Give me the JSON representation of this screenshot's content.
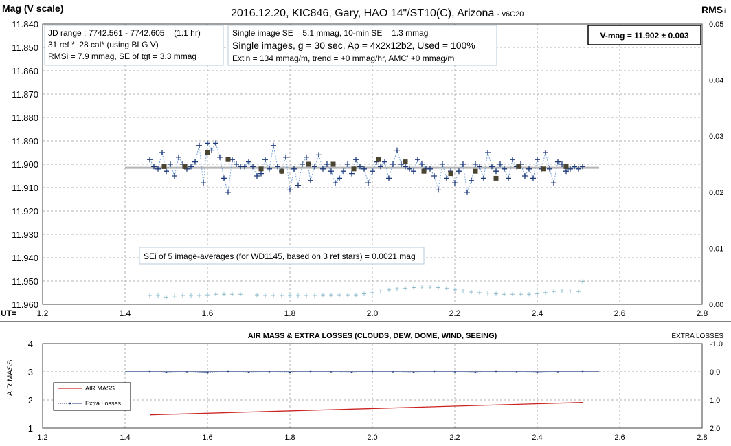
{
  "chart_data": [
    {
      "type": "scatter",
      "title": "2016.12.20, KIC846, Gary, HAO  14\"/ST10(C), Arizona",
      "version": "- v6C20",
      "ylabel": "Mag (V scale)",
      "y2label": "RMS",
      "y2label_suffix": "i",
      "xlabel": "UT=",
      "xlim": [
        1.2,
        2.8
      ],
      "ylim": [
        11.84,
        11.96
      ],
      "y_reversed": true,
      "y2lim": [
        0.0,
        0.05
      ],
      "xticks": [
        "1.2",
        "1.4",
        "1.6",
        "1.8",
        "2.0",
        "2.2",
        "2.4",
        "2.6",
        "2.8"
      ],
      "yticks": [
        "11.840",
        "11.850",
        "11.860",
        "11.870",
        "11.880",
        "11.890",
        "11.900",
        "11.910",
        "11.920",
        "11.930",
        "11.940",
        "11.950",
        "11.960"
      ],
      "y2ticks": [
        "0.05",
        "0.04",
        "0.03",
        "0.02",
        "0.01",
        "0.00"
      ],
      "grid": true,
      "colors": {
        "mag": "#1f3a7a",
        "mag_line": "#6fa0d8",
        "avg": "#4a4530",
        "fit": "#b5b5b5",
        "rms": "#8fbccc"
      },
      "textboxes": {
        "jd": [
          "JD range  : 7742.561 - 7742.605  = (1.1 hr)",
          "31 ref *, 28 cal* (using BLG V)",
          "RMSi = 7.9 mmag, SE of tgt = 3.3 mmag"
        ],
        "stats": [
          "Single image SE = 5.1 mmag, 10-min SE = 1.3 mmag",
          "Single images, g = 30 sec, Ap = 4x2x12b2, Used = 100%",
          "Ext'n = 134  mmag/m, trend = +0 mmag/hr, AMC' +0 mmag/m"
        ],
        "vmag": "V-mag = 11.902 ± 0.003",
        "sei": "SEi of 5 image-averages (for WD1145, based on 3 ref stars) = 0.0021 mag"
      },
      "fit_line": {
        "x": [
          1.4,
          2.55
        ],
        "y": 11.9015
      },
      "series": [
        {
          "name": "single images",
          "x": [
            1.46,
            1.47,
            1.48,
            1.49,
            1.5,
            1.51,
            1.52,
            1.53,
            1.54,
            1.55,
            1.56,
            1.57,
            1.58,
            1.59,
            1.6,
            1.61,
            1.62,
            1.63,
            1.64,
            1.65,
            1.66,
            1.67,
            1.68,
            1.69,
            1.7,
            1.71,
            1.72,
            1.73,
            1.74,
            1.75,
            1.76,
            1.77,
            1.78,
            1.79,
            1.8,
            1.81,
            1.82,
            1.83,
            1.84,
            1.85,
            1.86,
            1.87,
            1.88,
            1.89,
            1.9,
            1.91,
            1.92,
            1.93,
            1.94,
            1.95,
            1.96,
            1.97,
            1.98,
            1.99,
            2.0,
            2.01,
            2.02,
            2.03,
            2.04,
            2.05,
            2.06,
            2.07,
            2.08,
            2.09,
            2.1,
            2.11,
            2.12,
            2.13,
            2.14,
            2.15,
            2.16,
            2.17,
            2.18,
            2.19,
            2.2,
            2.21,
            2.22,
            2.23,
            2.24,
            2.25,
            2.26,
            2.27,
            2.28,
            2.29,
            2.3,
            2.31,
            2.32,
            2.33,
            2.34,
            2.35,
            2.36,
            2.37,
            2.38,
            2.39,
            2.4,
            2.41,
            2.42,
            2.43,
            2.44,
            2.45,
            2.46,
            2.47,
            2.48,
            2.49,
            2.5,
            2.51
          ],
          "y": [
            11.898,
            11.901,
            11.902,
            11.895,
            11.903,
            11.9,
            11.905,
            11.897,
            11.9,
            11.902,
            11.901,
            11.899,
            11.892,
            11.908,
            11.891,
            11.894,
            11.891,
            11.897,
            11.906,
            11.912,
            11.898,
            11.9,
            11.901,
            11.901,
            11.899,
            11.901,
            11.905,
            11.904,
            11.898,
            11.902,
            11.892,
            11.901,
            11.903,
            11.897,
            11.911,
            11.902,
            11.909,
            11.9,
            11.897,
            11.907,
            11.901,
            11.896,
            11.902,
            11.9,
            11.903,
            11.908,
            11.906,
            11.903,
            11.9,
            11.904,
            11.898,
            11.901,
            11.902,
            11.908,
            11.903,
            11.899,
            11.901,
            11.899,
            11.906,
            11.9,
            11.894,
            11.9,
            11.901,
            11.902,
            11.903,
            11.898,
            11.9,
            11.902,
            11.902,
            11.905,
            11.911,
            11.9,
            11.906,
            11.903,
            11.908,
            11.903,
            11.9,
            11.912,
            11.907,
            11.9,
            11.901,
            11.906,
            11.895,
            11.901,
            11.903,
            11.9,
            11.902,
            11.906,
            11.898,
            11.901,
            11.9,
            11.905,
            11.902,
            11.906,
            11.898,
            11.902,
            11.895,
            11.902,
            11.908,
            11.899,
            11.9,
            11.903,
            11.902,
            11.901,
            11.902,
            11.901
          ]
        },
        {
          "name": "5 image-averages",
          "x": [
            1.495,
            1.545,
            1.6,
            1.65,
            1.73,
            1.78,
            1.845,
            1.905,
            1.955,
            2.015,
            2.08,
            2.125,
            2.19,
            2.25,
            2.3,
            2.355,
            2.415,
            2.47
          ],
          "y": [
            11.901,
            11.901,
            11.895,
            11.898,
            11.902,
            11.903,
            11.9,
            11.9,
            11.902,
            11.898,
            11.899,
            11.903,
            11.904,
            11.903,
            11.906,
            11.901,
            11.902,
            11.901
          ]
        },
        {
          "name": "RMSi",
          "axis": "right",
          "x": [
            1.46,
            1.48,
            1.5,
            1.52,
            1.54,
            1.56,
            1.58,
            1.6,
            1.62,
            1.64,
            1.66,
            1.68,
            1.7,
            1.72,
            1.74,
            1.76,
            1.78,
            1.8,
            1.82,
            1.84,
            1.86,
            1.88,
            1.9,
            1.92,
            1.94,
            1.96,
            1.98,
            2.0,
            2.02,
            2.04,
            2.06,
            2.08,
            2.1,
            2.12,
            2.14,
            2.16,
            2.18,
            2.2,
            2.22,
            2.24,
            2.26,
            2.28,
            2.3,
            2.32,
            2.34,
            2.36,
            2.38,
            2.4,
            2.42,
            2.44,
            2.46,
            2.48,
            2.5,
            2.51
          ],
          "y": [
            0.0016,
            0.0016,
            0.0013,
            0.0015,
            0.0016,
            0.0016,
            0.0016,
            0.0017,
            0.0018,
            0.0018,
            0.0018,
            0.0018,
            null,
            0.0017,
            0.0016,
            0.0016,
            0.0016,
            0.0016,
            0.0016,
            0.0016,
            0.0016,
            0.0017,
            0.0017,
            0.0017,
            0.0017,
            0.0017,
            0.0019,
            0.0021,
            0.0024,
            0.0026,
            0.0028,
            0.0029,
            0.003,
            0.0031,
            0.0031,
            0.003,
            0.0029,
            0.0026,
            0.0024,
            0.0022,
            0.0021,
            0.002,
            0.0019,
            0.0018,
            0.0018,
            0.0018,
            0.0018,
            0.0019,
            0.0021,
            0.0023,
            0.0024,
            0.0024,
            0.0023,
            0.0041
          ]
        }
      ]
    },
    {
      "type": "line",
      "title": "AIR MASS & EXTRA LOSSES (CLOUDS, DEW, DOME, WIND, SEEING)",
      "ylabel": "AIR MASS",
      "y2label": "EXTRA LOSSES",
      "xlim": [
        1.2,
        2.8
      ],
      "ylim": [
        1,
        4
      ],
      "y2lim": [
        2.0,
        -1.0
      ],
      "xticks": [
        "1.2",
        "1.4",
        "1.6",
        "1.8",
        "2.0",
        "2.2",
        "2.4",
        "2.6",
        "2.8"
      ],
      "yticks": [
        "4",
        "3",
        "2",
        "1"
      ],
      "y2ticks": [
        "-1.0",
        "0.0",
        "1.0",
        "2.0"
      ],
      "grid": true,
      "legend": [
        "AIR MASS",
        "Extra Losses"
      ],
      "legend_position": "bottom-left",
      "zero_line": {
        "x": [
          1.4,
          2.55
        ],
        "y": 0.0
      },
      "series": [
        {
          "name": "AIR MASS",
          "color": "#cc2222",
          "x": [
            1.46,
            2.51
          ],
          "y": [
            1.47,
            1.91
          ]
        },
        {
          "name": "Extra Losses",
          "color": "#1f3a7a",
          "x": [
            1.46,
            1.5,
            1.55,
            1.6,
            1.65,
            1.7,
            1.75,
            1.8,
            1.85,
            1.9,
            1.95,
            2.0,
            2.05,
            2.1,
            2.15,
            2.2,
            2.25,
            2.3,
            2.35,
            2.4,
            2.45,
            2.51
          ],
          "y": [
            0.0,
            0.02,
            0.01,
            0.03,
            0.0,
            0.02,
            0.01,
            0.02,
            0.0,
            0.01,
            0.02,
            0.0,
            0.01,
            0.02,
            0.0,
            0.01,
            0.02,
            0.0,
            0.01,
            0.02,
            0.01,
            0.0
          ]
        }
      ]
    }
  ]
}
